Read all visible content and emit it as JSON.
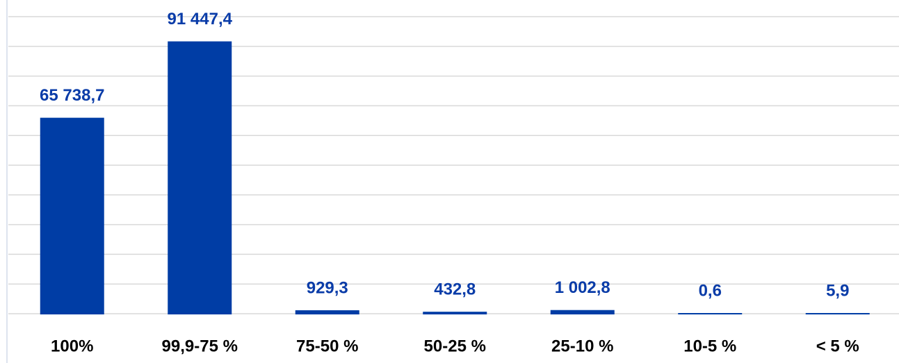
{
  "chart_data": {
    "type": "bar",
    "categories": [
      "100%",
      "99,9-75 %",
      "75-50 %",
      "50-25 %",
      "25-10 %",
      "10-5 %",
      "< 5 %"
    ],
    "values": [
      65738.7,
      91447.4,
      929.3,
      432.8,
      1002.8,
      0.6,
      5.9
    ],
    "value_labels": [
      "65 738,7",
      "91 447,4",
      "929,3",
      "432,8",
      "1 002,8",
      "0,6",
      "5,9"
    ],
    "color": "#003da5",
    "label_color": "#0a3ca8",
    "ylim": [
      0,
      100000
    ],
    "yticks": [
      0,
      10000,
      20000,
      30000,
      40000,
      50000,
      60000,
      70000,
      80000,
      90000,
      100000
    ],
    "grid": true
  }
}
